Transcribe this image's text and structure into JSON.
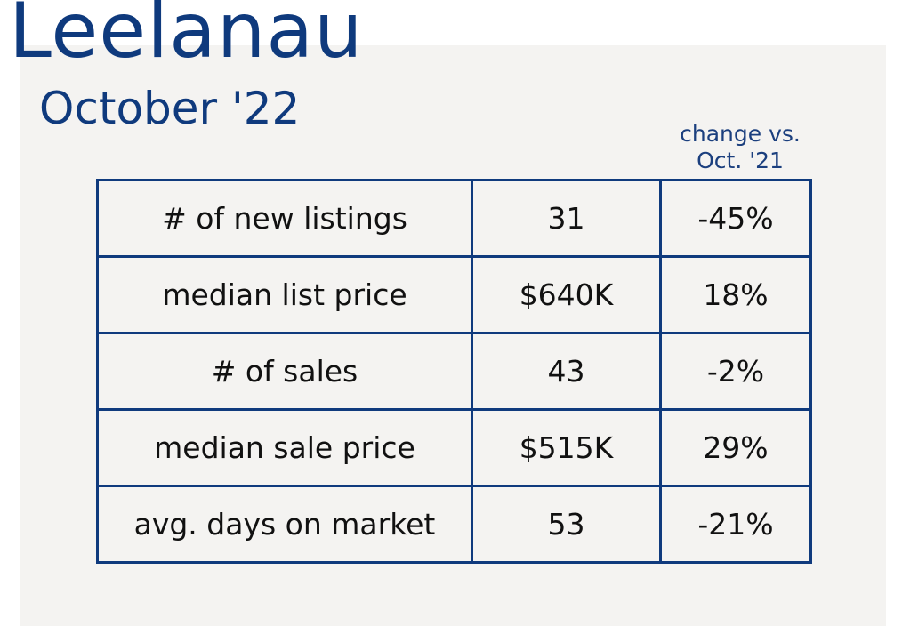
{
  "title": "Leelanau",
  "subtitle": "October '22",
  "change_note": {
    "line1": "change vs.",
    "line2": "Oct. '21"
  },
  "rows": [
    {
      "metric": "# of new listings",
      "value": "31",
      "change": "-45%"
    },
    {
      "metric": "median list price",
      "value": "$640K",
      "change": "18%"
    },
    {
      "metric": "# of sales",
      "value": "43",
      "change": "-2%"
    },
    {
      "metric": "median sale price",
      "value": "$515K",
      "change": "29%"
    },
    {
      "metric": "avg. days on market",
      "value": "53",
      "change": "-21%"
    }
  ],
  "colors": {
    "title": "#0f3a7d",
    "border": "#0f3a7d",
    "panel": "#f4f3f1"
  }
}
